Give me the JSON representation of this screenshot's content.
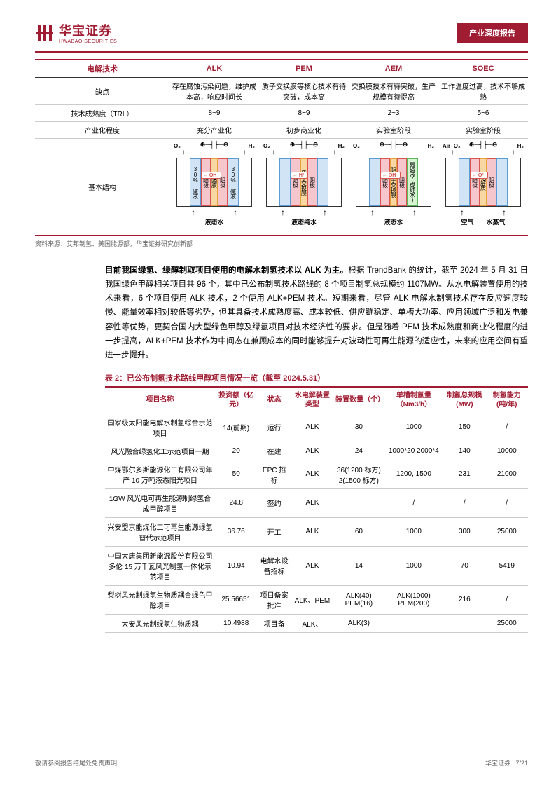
{
  "header": {
    "logo_cn": "华宝证券",
    "logo_en": "HWABAO SECURITIES",
    "badge": "产业深度报告"
  },
  "table1": {
    "headers": [
      "电解技术",
      "ALK",
      "PEM",
      "AEM",
      "SOEC"
    ],
    "rows": [
      {
        "label": "缺点",
        "cells": [
          "存在腐蚀污染问题，维护成本高，响应时间长",
          "质子交换膜等核心技术有待突破，成本高",
          "交换膜技术有待突破，生产规模有待提高",
          "工作温度过高，技术不够成熟"
        ]
      },
      {
        "label": "技术成熟度（TRL）",
        "cells": [
          "8~9",
          "8~9",
          "2~3",
          "5~6"
        ]
      },
      {
        "label": "产业化程度",
        "cells": [
          "充分产业化",
          "初步商业化",
          "实验室阶段",
          "实验室阶段"
        ]
      }
    ],
    "struct_label": "基本结构",
    "diagrams": [
      {
        "left_gas": "O₂",
        "right_gas": "H₂",
        "bars": [
          {
            "txt": "30% 碱液",
            "cls": "blue wide"
          },
          {
            "txt": "阳极",
            "cls": "pink mid"
          },
          {
            "txt": "隔膜",
            "cls": "orange narrow"
          },
          {
            "txt": "阴极",
            "cls": "pink mid"
          },
          {
            "txt": "30% 碱液",
            "cls": "blue wide"
          }
        ],
        "ion": "OH⁻",
        "bottom": "液态水",
        "bottom2": ""
      },
      {
        "left_gas": "O₂",
        "right_gas": "H₂",
        "bars": [
          {
            "txt": "",
            "cls": "blue wide"
          },
          {
            "txt": "阳极",
            "cls": "pink mid"
          },
          {
            "txt": "质子交换膜",
            "cls": "orange narrow"
          },
          {
            "txt": "阴极",
            "cls": "pink mid"
          },
          {
            "txt": "",
            "cls": "blue wide"
          }
        ],
        "ion": "H⁺",
        "bottom": "液态纯水",
        "bottom2": ""
      },
      {
        "left_gas": "O₂",
        "right_gas": "H₂",
        "bars": [
          {
            "txt": "",
            "cls": "blue wide"
          },
          {
            "txt": "阳极",
            "cls": "pink mid"
          },
          {
            "txt": "阴离子交换膜",
            "cls": "orange narrow"
          },
          {
            "txt": "阴极",
            "cls": "pink mid"
          },
          {
            "txt": "弱碱液(或纯水)",
            "cls": "green wide"
          }
        ],
        "ion": "OH⁻",
        "bottom": "液态水",
        "bottom2": ""
      },
      {
        "left_gas": "Air+O₂",
        "right_gas": "H₂",
        "bars": [
          {
            "txt": "",
            "cls": "blue wide"
          },
          {
            "txt": "阳极",
            "cls": "pink mid"
          },
          {
            "txt": "电解质",
            "cls": "orange narrow"
          },
          {
            "txt": "阴极",
            "cls": "pink mid"
          },
          {
            "txt": "",
            "cls": "blue wide"
          }
        ],
        "ion": "O²⁻",
        "bottom": "空气",
        "bottom2": "水蒸气"
      }
    ],
    "source": "资料来源：艾邦制氢、美国能源部，华宝证券研究创新部"
  },
  "paragraph": {
    "bold": "目前我国绿氢、绿醇制取项目使用的电解水制氢技术以 ALK 为主。",
    "rest": "根据 TrendBank 的统计，截至 2024 年 5 月 31 日我国绿色甲醇相关项目共 96 个，其中已公布制氢技术路线的 8 个项目制氢总规模约 1107MW。从水电解装置使用的技术来看，6 个项目使用 ALK 技术，2 个使用 ALK+PEM 技术。短期来看，尽管 ALK 电解水制氢技术存在反应速度较慢、能量效率相对较低等劣势，但其具备技术成熟度高、成本较低、供应链稳定、单槽大功率、应用领域广泛和发电兼容性等优势，更契合国内大型绿色甲醇及绿氢项目对技术经济性的要求。但是随着 PEM 技术成熟度和商业化程度的进一步提高，ALK+PEM 技术作为中间态在兼顾成本的同时能够提升对波动性可再生能源的适应性，未来的应用空间有望进一步提升。"
  },
  "table2": {
    "caption": "表 2：已公布制氢技术路线甲醇项目情况一览（截至 2024.5.31）",
    "headers": [
      "项目名称",
      "投资额（亿元）",
      "状态",
      "水电解装置类型",
      "装置数量（个）",
      "单槽制氢量（Nm3/h）",
      "制氢总规模(MW)",
      "制氢能力(吨/年)"
    ],
    "rows": [
      [
        "国家级太阳能电解水制氢综合示范项目",
        "14(前期)",
        "运行",
        "ALK",
        "30",
        "1000",
        "150",
        "/"
      ],
      [
        "风光融合绿氢化工示范项目一期",
        "20",
        "在建",
        "ALK",
        "24",
        "1000*20 2000*4",
        "140",
        "10000"
      ],
      [
        "中煤鄂尔多斯能源化工有限公司年产 10 万吨液态阳光项目",
        "50",
        "EPC 招标",
        "ALK",
        "36(1200 标方) 2(1500 标方)",
        "1200, 1500",
        "231",
        "21000"
      ],
      [
        "1GW 风光电可再生能源制绿氢合成甲醇项目",
        "24.8",
        "签约",
        "ALK",
        "",
        "/",
        "/",
        "/"
      ],
      [
        "兴安盟京能煤化工可再生能源绿氢替代示范项目",
        "36.76",
        "开工",
        "ALK",
        "60",
        "1000",
        "300",
        "25000"
      ],
      [
        "中国大唐集团新能源股份有限公司多伦 15 万千瓦风光制氢一体化示范项目",
        "10.94",
        "电解水设备招标",
        "ALK",
        "14",
        "1000",
        "70",
        "5419"
      ],
      [
        "梨树风光制绿氢生物质耦合绿色甲醇项目",
        "25.56651",
        "项目备案批准",
        "ALK、PEM",
        "ALK(40) PEM(16)",
        "ALK(1000) PEM(200)",
        "216",
        "/"
      ],
      [
        "大安风光制绿氢生物质耦",
        "10.4988",
        "项目备",
        "ALK、",
        "ALK(3)",
        "",
        "",
        "25000"
      ]
    ]
  },
  "footer": {
    "left": "敬请参阅报告结尾处免责声明",
    "right_company": "华宝证券",
    "page": "7/21"
  }
}
